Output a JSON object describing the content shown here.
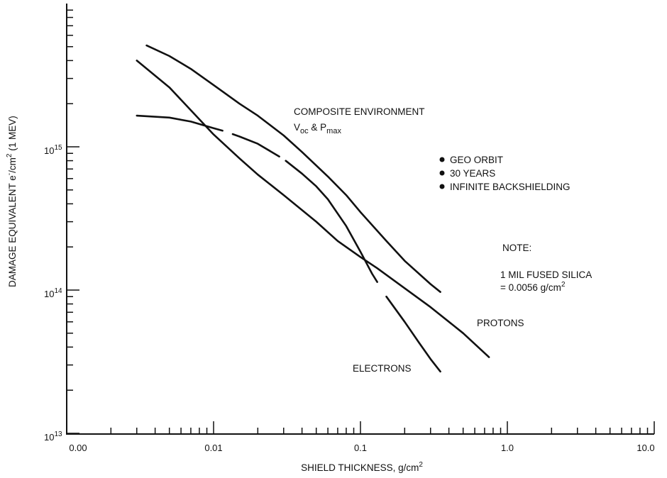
{
  "chart_data": {
    "type": "line",
    "xscale": "log",
    "yscale": "log",
    "xlim": [
      0.001,
      10.0
    ],
    "ylim": [
      10000000000000.0,
      1e+16
    ],
    "xlabel": "SHIELD THICKNESS, g/cm",
    "xlabel_sup": "2",
    "ylabel": "DAMAGE EQUIVALENT e",
    "ylabel_sup1": "-",
    "ylabel_mid": "/cm",
    "ylabel_sup2": "2",
    "ylabel_tail": " (1 MEV)",
    "x_tick_labels": [
      "0.00",
      "0.01",
      "0.1",
      "1.0",
      "10.0"
    ],
    "y_tick_labels": [
      {
        "base": "10",
        "exp": "15"
      },
      {
        "base": "10",
        "exp": "14"
      },
      {
        "base": "10",
        "exp": "13"
      }
    ],
    "grid": false,
    "series": [
      {
        "name": "COMPOSITE ENVIRONMENT",
        "x": [
          0.0035,
          0.005,
          0.007,
          0.01,
          0.015,
          0.02,
          0.03,
          0.04,
          0.06,
          0.08,
          0.1,
          0.15,
          0.2,
          0.3,
          0.35
        ],
        "y": [
          5100000000000000.0,
          4300000000000000.0,
          3500000000000000.0,
          2700000000000000.0,
          2000000000000000.0,
          1650000000000000.0,
          1200000000000000.0,
          920000000000000.0,
          620000000000000.0,
          460000000000000.0,
          350000000000000.0,
          220000000000000.0,
          160000000000000.0,
          110000000000000.0,
          97000000000000.0
        ]
      },
      {
        "name": "ELECTRONS",
        "x": [
          0.003,
          0.005,
          0.007,
          0.01,
          0.012,
          0.015,
          0.02,
          0.03,
          0.04,
          0.05,
          0.06,
          0.08,
          0.1,
          0.12,
          0.15,
          0.2,
          0.25,
          0.3,
          0.35
        ],
        "y": [
          1650000000000000.0,
          1600000000000000.0,
          1500000000000000.0,
          1350000000000000.0,
          1280000000000000.0,
          1180000000000000.0,
          1050000000000000.0,
          820000000000000.0,
          650000000000000.0,
          530000000000000.0,
          430000000000000.0,
          280000000000000.0,
          185000000000000.0,
          130000000000000.0,
          90000000000000.0,
          60000000000000.0,
          43000000000000.0,
          33000000000000.0,
          27000000000000.0
        ],
        "gaps": [
          [
            0.0115,
            0.0135
          ],
          [
            0.028,
            0.031
          ],
          [
            0.13,
            0.15
          ]
        ]
      },
      {
        "name": "PROTONS",
        "x": [
          0.003,
          0.005,
          0.007,
          0.01,
          0.015,
          0.02,
          0.03,
          0.05,
          0.07,
          0.1,
          0.13,
          0.2,
          0.3,
          0.5,
          0.75
        ],
        "y": [
          4000000000000000.0,
          2600000000000000.0,
          1800000000000000.0,
          1220000000000000.0,
          830000000000000.0,
          640000000000000.0,
          460000000000000.0,
          300000000000000.0,
          220000000000000.0,
          170000000000000.0,
          142000000000000.0,
          103000000000000.0,
          76000000000000.0,
          50000000000000.0,
          34000000000000.0
        ]
      }
    ],
    "annotations": {
      "composite_line1": "COMPOSITE ENVIRONMENT",
      "composite_line2": {
        "v": "V",
        "v_sub": "oc",
        "amp": " & ",
        "p": "P",
        "p_sub": "max"
      },
      "bullets": [
        "GEO ORBIT",
        "30 YEARS",
        "INFINITE BACKSHIELDING"
      ],
      "note_title": "NOTE:",
      "note_line1": "1 MIL FUSED SILICA",
      "note_line2": "= 0.0056 g/cm",
      "note_line2_sup": "2",
      "protons": "PROTONS",
      "electrons": "ELECTRONS"
    }
  }
}
